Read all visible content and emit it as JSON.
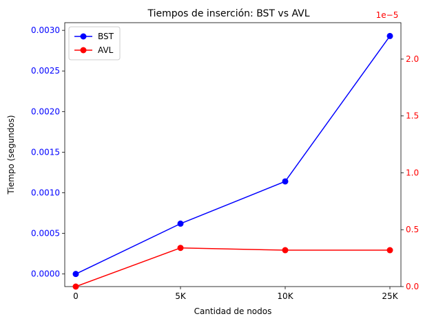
{
  "chart_data": {
    "type": "line",
    "title": "Tiempos de inserción: BST vs AVL",
    "xlabel": "Cantidad de nodos",
    "ylabel": "Tiempo (segundos)",
    "y2label": "",
    "y2_offset_text": "1e−5",
    "categories": [
      "0",
      "5K",
      "10K",
      "25K"
    ],
    "ylim": [
      -0.000155,
      0.0030944
    ],
    "y2lim": [
      0,
      2.32e-05
    ],
    "yticks": [
      0.0,
      0.0005,
      0.001,
      0.0015,
      0.002,
      0.0025,
      0.003
    ],
    "ytick_labels": [
      "0.0000",
      "0.0005",
      "0.0010",
      "0.0015",
      "0.0020",
      "0.0025",
      "0.0030"
    ],
    "y2ticks": [
      0.0,
      5e-06,
      1e-05,
      1.5e-05,
      2e-05
    ],
    "y2tick_labels": [
      "0.0",
      "0.5",
      "1.0",
      "1.5",
      "2.0"
    ],
    "grid": false,
    "legend_position": "top-left",
    "series": [
      {
        "name": "BST",
        "axis": "left",
        "color": "#0000ff",
        "values": [
          0.0,
          0.00062,
          0.00114,
          0.00293
        ]
      },
      {
        "name": "AVL",
        "axis": "right",
        "color": "#ff0000",
        "values": [
          0.0,
          3.4e-06,
          3.2e-06,
          3.2e-06
        ]
      }
    ],
    "left_tick_color": "#0000ff",
    "right_tick_color": "#ff0000"
  }
}
